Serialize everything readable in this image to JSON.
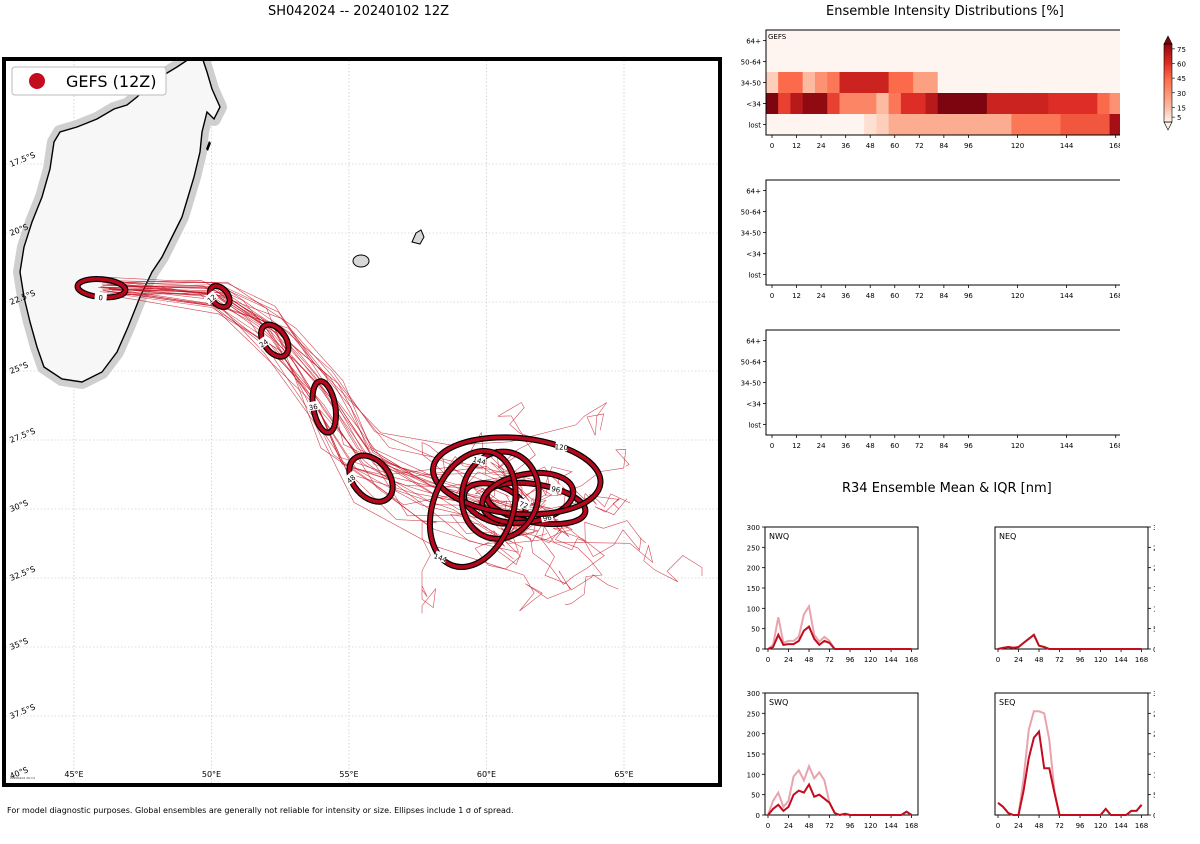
{
  "storm_title": "SH042024 -- 20240102 12Z",
  "right_title": "Ensemble Intensity Distributions [%]",
  "r34_title": "R34 Ensemble Mean & IQR [nm]",
  "footnote": "For model diagnostic purposes. Global ensembles are generally not reliable for intensity or size. Ellipses include 1 σ of spread.",
  "map": {
    "legend_label": "GEFS (12Z)",
    "tiny_stamp": "20240102 20:13",
    "lon_labels": [
      "45°E",
      "50°E",
      "55°E",
      "60°E",
      "65°E"
    ],
    "lat_labels": [
      "17.5°S",
      "20°S",
      "22.5°S",
      "25°S",
      "27.5°S",
      "30°S",
      "32.5°S",
      "35°S",
      "37.5°S",
      "40°S"
    ],
    "ellipse_hours": [
      "0",
      "12",
      "24",
      "36",
      "48",
      "72",
      "96",
      "96",
      "120",
      "144",
      "144"
    ],
    "colors": {
      "track": "#c30c1e",
      "land": "#f7f7f7",
      "ellipse": "#b5081c"
    }
  },
  "chart_data": [
    {
      "type": "heatmap",
      "title": "Ensemble Intensity Distributions [%]",
      "panel_label": "GEFS",
      "rows": [
        "64+",
        "50-64",
        "34-50",
        "<34",
        "lost"
      ],
      "x_ticks": [
        "0",
        "12",
        "24",
        "36",
        "48",
        "60",
        "72",
        "84",
        "96",
        "120",
        "144",
        "168"
      ],
      "x_hours": [
        0,
        6,
        12,
        18,
        24,
        30,
        36,
        42,
        48,
        54,
        60,
        66,
        72,
        78,
        84,
        90,
        96,
        102,
        108,
        114,
        120,
        126,
        132,
        138,
        144,
        150,
        156,
        162,
        168
      ],
      "values": {
        "64+": [
          0,
          0,
          0,
          0,
          0,
          0,
          0,
          0,
          0,
          0,
          0,
          0,
          0,
          0,
          0,
          0,
          0,
          0,
          0,
          0,
          0,
          0,
          0,
          0,
          0,
          0,
          0,
          0,
          0
        ],
        "50-64": [
          0,
          0,
          0,
          0,
          0,
          0,
          0,
          0,
          0,
          0,
          0,
          0,
          0,
          0,
          0,
          0,
          0,
          0,
          0,
          0,
          0,
          0,
          0,
          0,
          0,
          0,
          0,
          0,
          0
        ],
        "34-50": [
          10,
          45,
          45,
          15,
          30,
          40,
          65,
          65,
          65,
          65,
          45,
          45,
          25,
          25,
          0,
          0,
          0,
          0,
          0,
          0,
          0,
          0,
          0,
          0,
          0,
          0,
          0,
          0,
          0
        ],
        "<34": [
          85,
          55,
          70,
          80,
          80,
          55,
          35,
          35,
          35,
          15,
          40,
          60,
          60,
          70,
          85,
          85,
          85,
          85,
          65,
          65,
          65,
          65,
          65,
          60,
          60,
          60,
          60,
          45,
          30
        ],
        "lost": [
          0,
          0,
          0,
          0,
          0,
          0,
          0,
          0,
          5,
          10,
          20,
          20,
          20,
          20,
          20,
          20,
          20,
          20,
          20,
          20,
          40,
          40,
          40,
          40,
          50,
          50,
          50,
          50,
          75
        ]
      },
      "colorbar_ticks": [
        5,
        15,
        30,
        45,
        60,
        75
      ]
    },
    {
      "type": "heatmap",
      "panel_label": "",
      "rows": [
        "64+",
        "50-64",
        "34-50",
        "<34",
        "lost"
      ],
      "x_ticks": [
        "0",
        "12",
        "24",
        "36",
        "48",
        "60",
        "72",
        "84",
        "96",
        "120",
        "144",
        "168"
      ],
      "values": {}
    },
    {
      "type": "heatmap",
      "panel_label": "",
      "rows": [
        "64+",
        "50-64",
        "34-50",
        "<34",
        "lost"
      ],
      "x_ticks": [
        "0",
        "12",
        "24",
        "36",
        "48",
        "60",
        "72",
        "84",
        "96",
        "120",
        "144",
        "168"
      ],
      "values": {}
    },
    {
      "type": "line",
      "title": "R34 Ensemble Mean & IQR [nm]",
      "ylim": [
        0,
        300
      ],
      "y_ticks": [
        0,
        50,
        100,
        150,
        200,
        250,
        300
      ],
      "x_ticks": [
        0,
        24,
        48,
        72,
        96,
        120,
        144,
        168
      ],
      "x": [
        0,
        6,
        12,
        18,
        24,
        30,
        36,
        42,
        48,
        54,
        60,
        66,
        72,
        78,
        84,
        90,
        96,
        102,
        108,
        114,
        120,
        126,
        132,
        138,
        144,
        150,
        156,
        162,
        168
      ],
      "quadrants": [
        {
          "label": "NWQ",
          "mean": [
            0,
            5,
            35,
            10,
            12,
            12,
            20,
            45,
            55,
            25,
            10,
            20,
            15,
            0,
            0,
            0,
            0,
            0,
            0,
            0,
            0,
            0,
            0,
            0,
            0,
            0,
            0,
            0,
            0
          ],
          "upper": [
            0,
            10,
            78,
            15,
            20,
            20,
            30,
            85,
            105,
            35,
            18,
            30,
            20,
            0,
            0,
            0,
            0,
            0,
            0,
            0,
            0,
            0,
            0,
            0,
            0,
            0,
            0,
            0,
            0
          ]
        },
        {
          "label": "NEQ",
          "mean": [
            0,
            3,
            5,
            3,
            5,
            15,
            25,
            35,
            8,
            5,
            0,
            0,
            0,
            0,
            0,
            0,
            0,
            0,
            0,
            0,
            0,
            0,
            0,
            0,
            0,
            0,
            0,
            0,
            0
          ],
          "upper": [
            0,
            3,
            5,
            3,
            5,
            15,
            25,
            35,
            8,
            5,
            0,
            0,
            0,
            0,
            0,
            0,
            0,
            0,
            0,
            0,
            0,
            0,
            0,
            0,
            0,
            0,
            0,
            0,
            0
          ]
        },
        {
          "label": "SWQ",
          "mean": [
            0,
            15,
            25,
            10,
            20,
            50,
            60,
            55,
            75,
            45,
            50,
            40,
            30,
            5,
            0,
            3,
            0,
            0,
            0,
            0,
            0,
            0,
            0,
            0,
            0,
            0,
            0,
            8,
            0
          ],
          "upper": [
            0,
            35,
            55,
            20,
            35,
            95,
            110,
            85,
            120,
            90,
            105,
            85,
            30,
            5,
            0,
            3,
            0,
            0,
            0,
            0,
            0,
            0,
            0,
            0,
            0,
            0,
            0,
            8,
            0
          ]
        },
        {
          "label": "SEQ",
          "mean": [
            30,
            20,
            5,
            0,
            0,
            60,
            140,
            190,
            205,
            115,
            115,
            55,
            0,
            0,
            0,
            0,
            0,
            0,
            0,
            0,
            0,
            15,
            0,
            0,
            0,
            0,
            10,
            10,
            25
          ],
          "upper": [
            30,
            20,
            5,
            0,
            0,
            90,
            210,
            255,
            255,
            250,
            185,
            60,
            0,
            0,
            0,
            0,
            0,
            0,
            0,
            0,
            0,
            15,
            0,
            0,
            0,
            0,
            10,
            10,
            25
          ]
        }
      ]
    }
  ]
}
